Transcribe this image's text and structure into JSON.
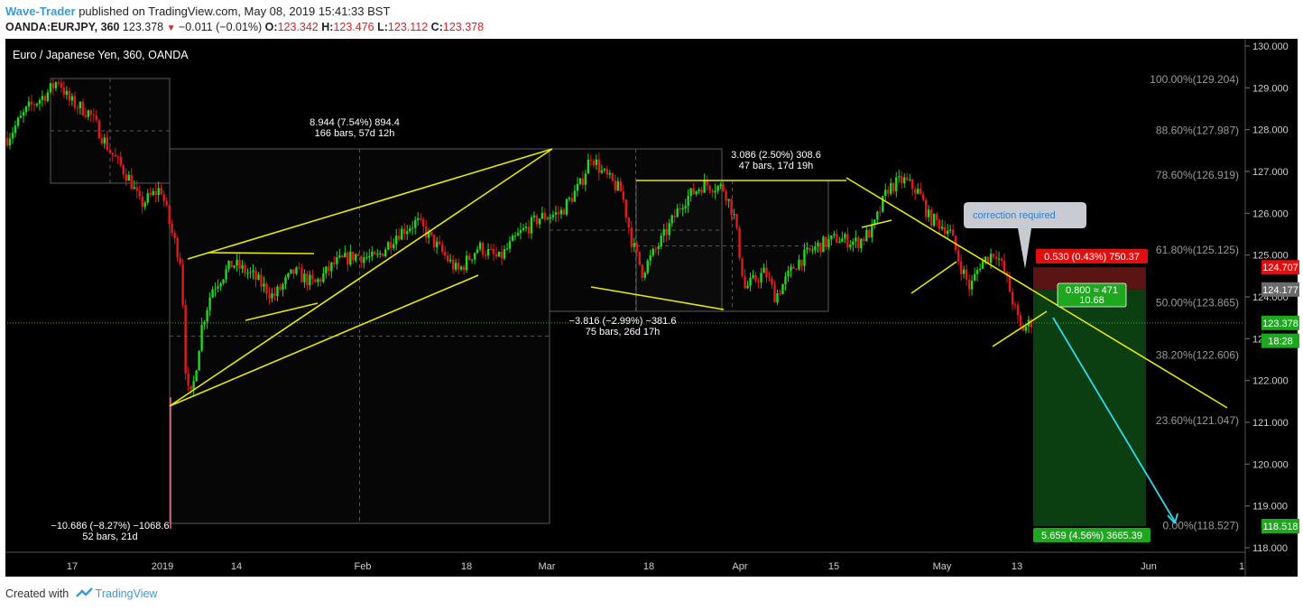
{
  "header": {
    "author": "Wave-Trader",
    "published_text": "published on TradingView.com, May 08, 2019 15:41:33 BST",
    "symbol": "OANDA:EURJPY, 360",
    "last": "123.378",
    "change": "−0.011 (−0.01%)",
    "open_label": "O:",
    "open": "123.342",
    "high_label": "H:",
    "high": "123.476",
    "low_label": "L:",
    "low": "123.112",
    "close_label": "C:",
    "close": "123.378"
  },
  "footer": {
    "created_with": "Created with",
    "brand": "TradingView"
  },
  "chart_data": {
    "type": "candlestick",
    "title": "Euro / Japanese Yen, 360, OANDA",
    "ylim": [
      117.8,
      130.2
    ],
    "y_ticks": [
      "130.000",
      "129.000",
      "128.000",
      "127.000",
      "126.000",
      "125.000",
      "124.000",
      "123.000",
      "122.000",
      "121.000",
      "120.000",
      "119.000",
      "118.000"
    ],
    "x_ticks": [
      "17",
      "2019",
      "14",
      "Feb",
      "18",
      "Mar",
      "18",
      "Apr",
      "15",
      "May",
      "13",
      "Jun",
      "1"
    ],
    "price_badges": [
      {
        "label": "124.707",
        "value": 124.707,
        "color": "#e01010"
      },
      {
        "label": "124.177",
        "value": 124.177,
        "color": "#6b6b6b"
      },
      {
        "label": "123.378",
        "value": 123.378,
        "color": "#1fa81f"
      },
      {
        "label": "18:28",
        "value": 122.95,
        "color": "#1fa81f"
      },
      {
        "label": "118.518",
        "value": 118.518,
        "color": "#1fa81f"
      }
    ],
    "fib_levels": [
      {
        "label": "100.00%(129.204)",
        "value": 129.204
      },
      {
        "label": "88.60%(127.987)",
        "value": 127.987
      },
      {
        "label": "78.60%(126.919)",
        "value": 126.919
      },
      {
        "label": "61.80%(125.125)",
        "value": 125.125
      },
      {
        "label": "50.00%(123.865)",
        "value": 123.865
      },
      {
        "label": "38.20%(122.606)",
        "value": 122.606
      },
      {
        "label": "23.60%(121.047)",
        "value": 121.047
      },
      {
        "label": "0.00%(118.527)",
        "value": 118.527
      }
    ],
    "measure_labels": [
      {
        "line1": "−10.686 (−8.27%) −1068.6",
        "line2": "52 bars, 21d"
      },
      {
        "line1": "8.944 (7.54%) 894.4",
        "line2": "166 bars, 57d 12h"
      },
      {
        "line1": "−3.816 (−2.99%) −381.6",
        "line2": "75 bars, 26d 17h"
      },
      {
        "line1": "3.086 (2.50%) 308.6",
        "line2": "47 bars, 17d 19h"
      }
    ],
    "position": {
      "stop_label": "0.530 (0.43%) 750.37",
      "entry_label1": "0.800 ≈ 471",
      "entry_label2": "10.68",
      "target_label": "5.659 (4.56%) 3665.39",
      "entry": 124.177,
      "stop": 124.707,
      "target": 118.518
    },
    "callout": "correction required",
    "current_price": 123.378,
    "series_path": [
      [
        0,
        127.8
      ],
      [
        0.02,
        128.5
      ],
      [
        0.04,
        128.9
      ],
      [
        0.05,
        129.2
      ],
      [
        0.06,
        128.7
      ],
      [
        0.08,
        128.4
      ],
      [
        0.1,
        127.5
      ],
      [
        0.12,
        126.8
      ],
      [
        0.13,
        126.2
      ],
      [
        0.15,
        126.6
      ],
      [
        0.16,
        125.6
      ],
      [
        0.17,
        124.8
      ],
      [
        0.175,
        121.8
      ],
      [
        0.18,
        121.6
      ],
      [
        0.19,
        123.3
      ],
      [
        0.2,
        124.2
      ],
      [
        0.22,
        124.8
      ],
      [
        0.24,
        124.5
      ],
      [
        0.26,
        124.0
      ],
      [
        0.28,
        124.6
      ],
      [
        0.3,
        124.3
      ],
      [
        0.32,
        124.8
      ],
      [
        0.34,
        125.0
      ],
      [
        0.36,
        124.9
      ],
      [
        0.38,
        125.5
      ],
      [
        0.4,
        125.8
      ],
      [
        0.42,
        125.2
      ],
      [
        0.44,
        124.6
      ],
      [
        0.46,
        125.2
      ],
      [
        0.48,
        124.9
      ],
      [
        0.5,
        125.5
      ],
      [
        0.52,
        125.9
      ],
      [
        0.54,
        126.0
      ],
      [
        0.56,
        126.7
      ],
      [
        0.57,
        127.4
      ],
      [
        0.58,
        127.0
      ],
      [
        0.6,
        126.5
      ],
      [
        0.61,
        125.3
      ],
      [
        0.62,
        124.6
      ],
      [
        0.64,
        125.4
      ],
      [
        0.66,
        126.3
      ],
      [
        0.68,
        126.7
      ],
      [
        0.7,
        126.6
      ],
      [
        0.71,
        125.9
      ],
      [
        0.72,
        124.2
      ],
      [
        0.74,
        124.6
      ],
      [
        0.75,
        124.0
      ],
      [
        0.77,
        124.8
      ],
      [
        0.79,
        125.2
      ],
      [
        0.81,
        125.4
      ],
      [
        0.83,
        125.3
      ],
      [
        0.845,
        125.6
      ],
      [
        0.86,
        126.6
      ],
      [
        0.875,
        126.8
      ],
      [
        0.89,
        126.5
      ],
      [
        0.9,
        125.9
      ],
      [
        0.92,
        125.6
      ],
      [
        0.93,
        124.8
      ],
      [
        0.94,
        124.2
      ],
      [
        0.95,
        124.8
      ],
      [
        0.965,
        125.1
      ],
      [
        0.975,
        124.5
      ],
      [
        0.985,
        123.6
      ],
      [
        0.99,
        123.2
      ],
      [
        1.0,
        123.4
      ]
    ]
  }
}
